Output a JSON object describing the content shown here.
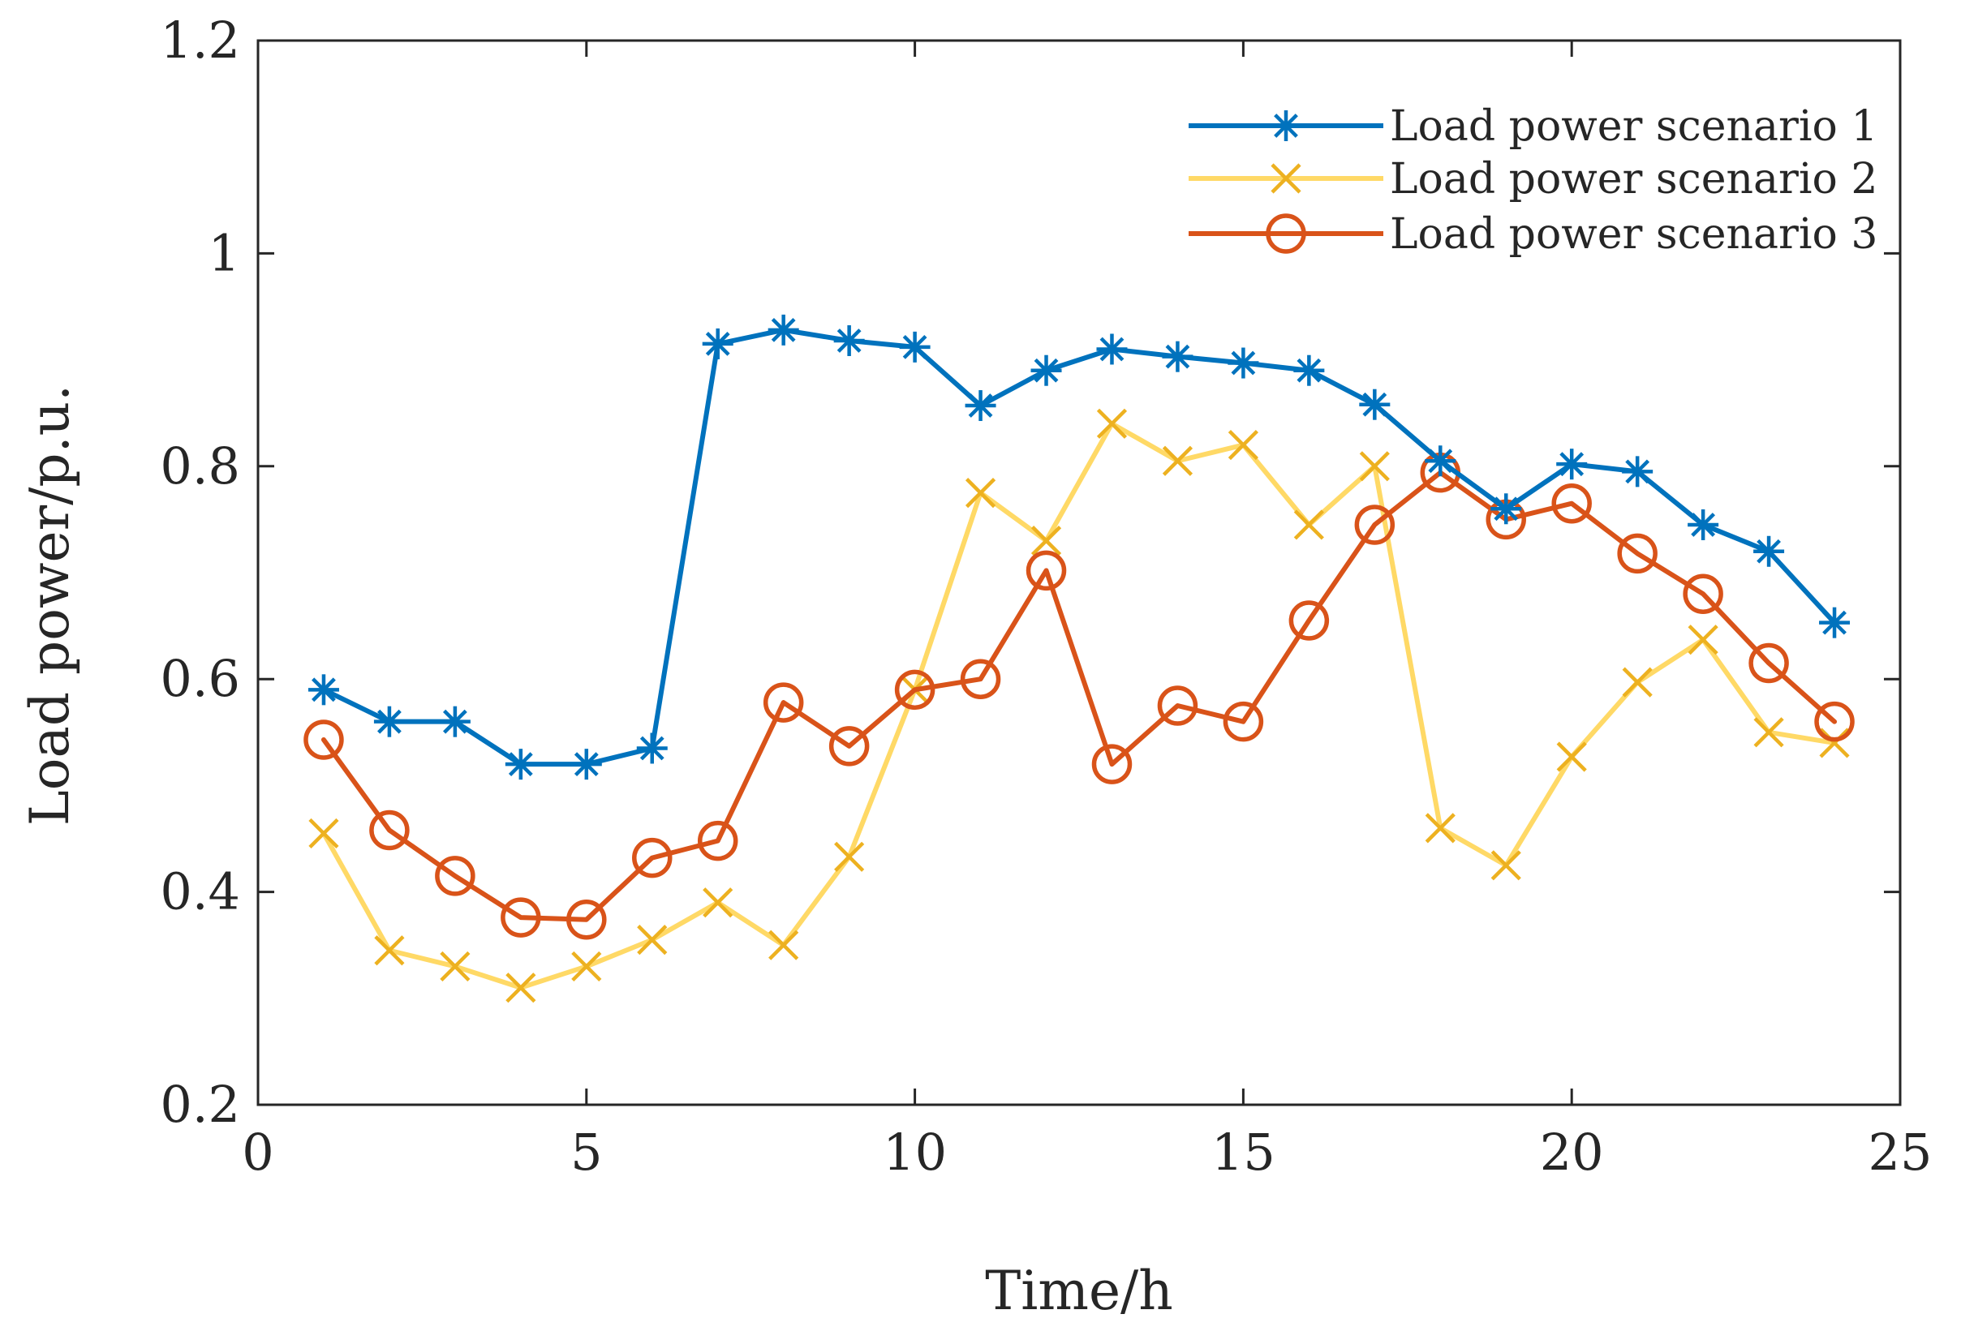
{
  "chart_data": {
    "type": "line",
    "title": "",
    "xlabel": "Time/h",
    "ylabel": "Load power/p.u.",
    "xlim": [
      0,
      25
    ],
    "ylim": [
      0.2,
      1.2
    ],
    "xticks": [
      0,
      5,
      10,
      15,
      20,
      25
    ],
    "yticks": [
      0.2,
      0.4,
      0.6,
      0.8,
      1,
      1.2
    ],
    "xtick_labels": [
      "0",
      "5",
      "10",
      "15",
      "20",
      "25"
    ],
    "ytick_labels": [
      "0.2",
      "0.4",
      "0.6",
      "0.8",
      "1",
      "1.2"
    ],
    "grid": false,
    "legend_position": "top-right",
    "x": [
      1,
      2,
      3,
      4,
      5,
      6,
      7,
      8,
      9,
      10,
      11,
      12,
      13,
      14,
      15,
      16,
      17,
      18,
      19,
      20,
      21,
      22,
      23,
      24
    ],
    "series": [
      {
        "name": "Load power scenario 1",
        "color": "#0072BD",
        "marker": "asterisk",
        "values": [
          0.59,
          0.56,
          0.56,
          0.52,
          0.52,
          0.535,
          0.915,
          0.928,
          0.918,
          0.912,
          0.857,
          0.89,
          0.91,
          0.903,
          0.897,
          0.89,
          0.858,
          0.805,
          0.76,
          0.802,
          0.795,
          0.745,
          0.72,
          0.653
        ]
      },
      {
        "name": "Load power scenario 2",
        "color": "#EDB120",
        "line_color": "#FFD966",
        "marker": "x",
        "values": [
          0.455,
          0.345,
          0.33,
          0.31,
          0.33,
          0.355,
          0.39,
          0.35,
          0.433,
          0.59,
          0.775,
          0.73,
          0.84,
          0.805,
          0.82,
          0.745,
          0.8,
          0.46,
          0.425,
          0.527,
          0.597,
          0.637,
          0.55,
          0.54
        ]
      },
      {
        "name": "Load power scenario 3",
        "color": "#D95319",
        "marker": "circle",
        "values": [
          0.543,
          0.458,
          0.415,
          0.376,
          0.374,
          0.432,
          0.448,
          0.578,
          0.537,
          0.59,
          0.6,
          0.702,
          0.52,
          0.575,
          0.56,
          0.655,
          0.745,
          0.794,
          0.75,
          0.765,
          0.718,
          0.68,
          0.615,
          0.56
        ]
      }
    ]
  }
}
